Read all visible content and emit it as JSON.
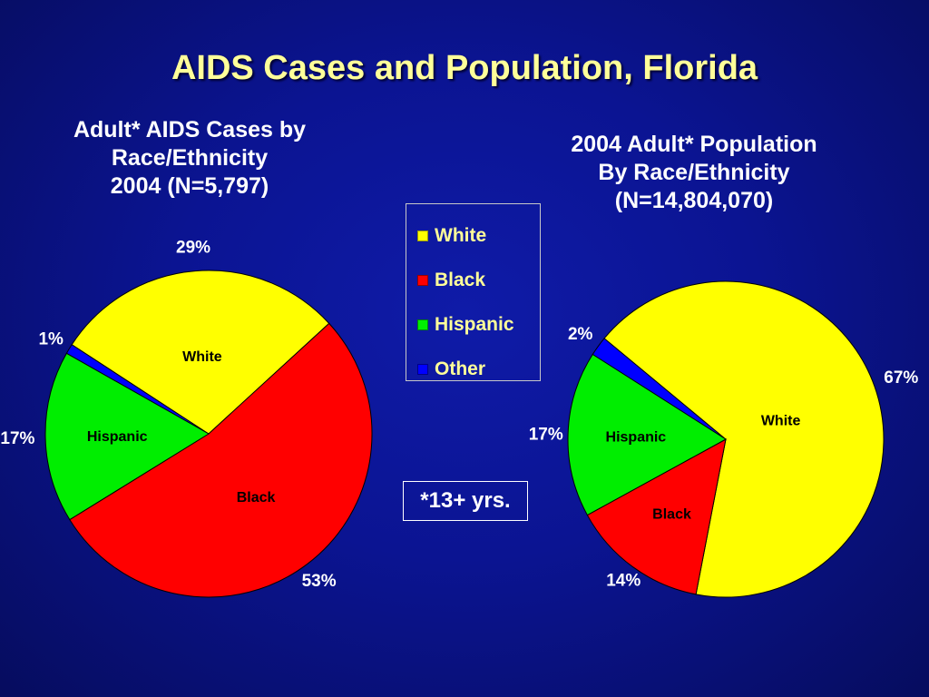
{
  "page": {
    "title": "AIDS Cases and Population, Florida",
    "footnote": "*13+ yrs."
  },
  "legend": {
    "items": [
      {
        "label": "White",
        "color": "#ffff00"
      },
      {
        "label": "Black",
        "color": "#ff0000"
      },
      {
        "label": "Hispanic",
        "color": "#00ee00"
      },
      {
        "label": "Other",
        "color": "#0000ff"
      }
    ]
  },
  "chart_data": [
    {
      "type": "pie",
      "title_lines": [
        "Adult* AIDS Cases by",
        "Race/Ethnicity",
        "2004  (N=5,797)"
      ],
      "slices": [
        {
          "category": "White",
          "value": 29,
          "pct_label": "29%",
          "inner_label": "White",
          "color": "#ffff00"
        },
        {
          "category": "Black",
          "value": 53,
          "pct_label": "53%",
          "inner_label": "Black",
          "color": "#ff0000"
        },
        {
          "category": "Hispanic",
          "value": 17,
          "pct_label": "17%",
          "inner_label": "Hispanic",
          "color": "#00ee00"
        },
        {
          "category": "Other",
          "value": 1,
          "pct_label": "1%",
          "inner_label": "",
          "color": "#0000ff"
        }
      ]
    },
    {
      "type": "pie",
      "title_lines": [
        "2004 Adult* Population",
        "By Race/Ethnicity",
        "(N=14,804,070)"
      ],
      "slices": [
        {
          "category": "White",
          "value": 67,
          "pct_label": "67%",
          "inner_label": "White",
          "color": "#ffff00"
        },
        {
          "category": "Black",
          "value": 14,
          "pct_label": "14%",
          "inner_label": "Black",
          "color": "#ff0000"
        },
        {
          "category": "Hispanic",
          "value": 17,
          "pct_label": "17%",
          "inner_label": "Hispanic",
          "color": "#00ee00"
        },
        {
          "category": "Other",
          "value": 2,
          "pct_label": "2%",
          "inner_label": "",
          "color": "#0000ff"
        }
      ]
    }
  ]
}
